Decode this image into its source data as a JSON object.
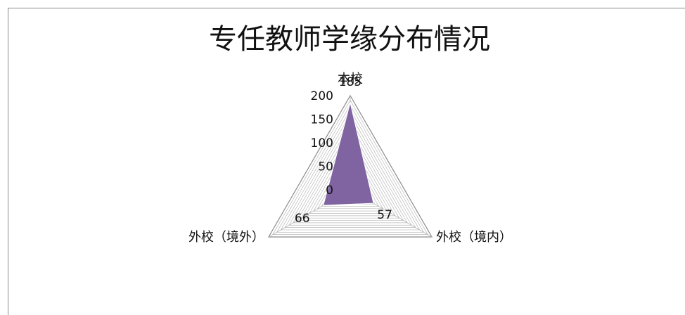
{
  "chart_data": {
    "type": "radar",
    "title": "专任教师学缘分布情况",
    "categories": [
      "本校",
      "外校（境内）",
      "外校（境外）"
    ],
    "series": [
      {
        "values": [
          185,
          57,
          66
        ]
      }
    ],
    "rlim": [
      0,
      200
    ],
    "r_ticks": [
      0,
      50,
      100,
      150,
      200
    ],
    "grid": true,
    "legend": "none",
    "colors": {
      "series_fill": "#8064a2",
      "series_stroke": "#ffffff",
      "grid_line": "#b8b8b8",
      "outer_frame": "#8a8a8a"
    }
  }
}
